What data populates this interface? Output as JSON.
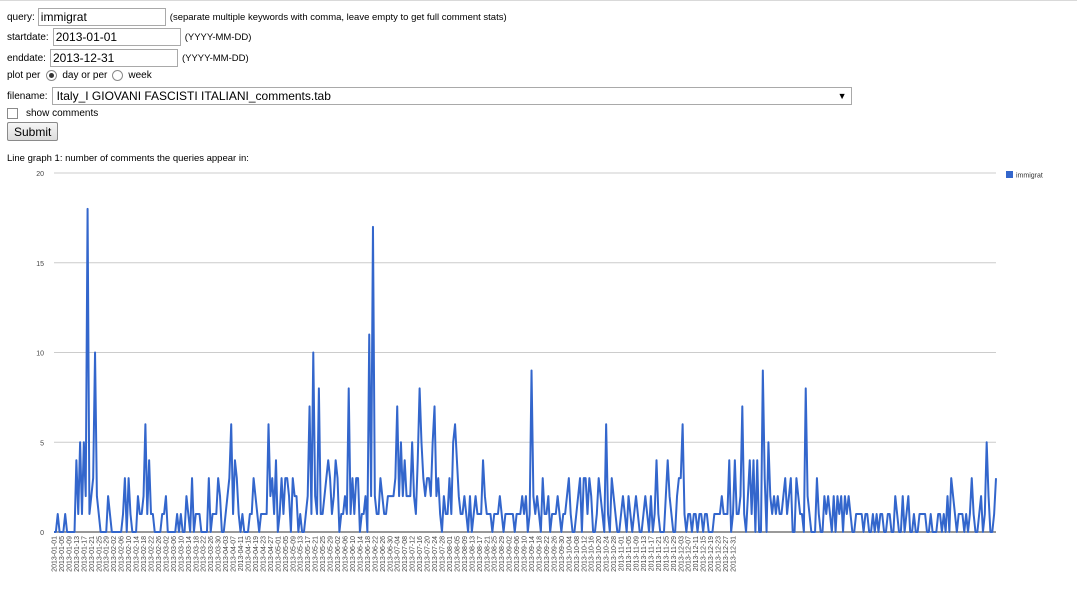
{
  "form": {
    "query_label": "query:",
    "query_value": "immigrat",
    "query_hint": "(separate multiple keywords with comma, leave empty to get full comment stats)",
    "startdate_label": "startdate:",
    "startdate_value": "2013-01-01",
    "startdate_hint": "(YYYY-MM-DD)",
    "enddate_label": "enddate:",
    "enddate_value": "2013-12-31",
    "enddate_hint": "(YYYY-MM-DD)",
    "plotper_label": "plot per",
    "plotper_option_day": "day or per",
    "plotper_option_week": "week",
    "filename_label": "filename:",
    "filename_value": "Italy_I GIOVANI FASCISTI ITALIANI_comments.tab",
    "show_comments_label": "show comments",
    "submit_label": "Submit"
  },
  "caption": "Line graph 1: number of comments the queries appear in:",
  "chart_data": {
    "type": "line",
    "title": "",
    "xlabel": "",
    "ylabel": "",
    "ylim": [
      0,
      20
    ],
    "yticks": [
      0,
      5,
      10,
      15,
      20
    ],
    "grid": true,
    "legend_position": "top-right",
    "x_start": "2013-01-01",
    "x_end": "2013-12-31",
    "x_tick_labels": [
      "2013-01-01",
      "2013-01-05",
      "2013-01-09",
      "2013-01-13",
      "2013-01-17",
      "2013-01-21",
      "2013-01-25",
      "2013-01-29",
      "2013-02-02",
      "2013-02-06",
      "2013-02-10",
      "2013-02-14",
      "2013-02-18",
      "2013-02-22",
      "2013-02-26",
      "2013-03-02",
      "2013-03-06",
      "2013-03-10",
      "2013-03-14",
      "2013-03-18",
      "2013-03-22",
      "2013-03-26",
      "2013-03-30",
      "2013-04-03",
      "2013-04-07",
      "2013-04-11",
      "2013-04-15",
      "2013-04-19",
      "2013-04-23",
      "2013-04-27",
      "2013-05-01",
      "2013-05-05",
      "2013-05-09",
      "2013-05-13",
      "2013-05-17",
      "2013-05-21",
      "2013-05-25",
      "2013-05-29",
      "2013-06-02",
      "2013-06-06",
      "2013-06-10",
      "2013-06-14",
      "2013-06-18",
      "2013-06-22",
      "2013-06-26",
      "2013-06-30",
      "2013-07-04",
      "2013-07-08",
      "2013-07-12",
      "2013-07-16",
      "2013-07-20",
      "2013-07-24",
      "2013-07-28",
      "2013-08-01",
      "2013-08-05",
      "2013-08-09",
      "2013-08-13",
      "2013-08-17",
      "2013-08-21",
      "2013-08-25",
      "2013-08-29",
      "2013-09-02",
      "2013-09-06",
      "2013-09-10",
      "2013-09-14",
      "2013-09-18",
      "2013-09-22",
      "2013-09-26",
      "2013-09-30",
      "2013-10-04",
      "2013-10-08",
      "2013-10-12",
      "2013-10-16",
      "2013-10-20",
      "2013-10-24",
      "2013-10-28",
      "2013-11-01",
      "2013-11-05",
      "2013-11-09",
      "2013-11-13",
      "2013-11-17",
      "2013-11-21",
      "2013-11-25",
      "2013-11-29",
      "2013-12-03",
      "2013-12-07",
      "2013-12-11",
      "2013-12-15",
      "2013-12-19",
      "2013-12-23",
      "2013-12-27",
      "2013-12-31"
    ],
    "series": [
      {
        "name": "immigrat",
        "color": "#3366cc",
        "values": [
          0,
          0,
          1,
          0,
          0,
          0,
          1,
          0,
          0,
          0,
          0,
          0,
          4,
          1,
          5,
          1,
          5,
          2,
          18,
          1,
          2,
          3,
          10,
          2,
          1,
          0,
          0,
          0,
          0,
          2,
          1,
          0,
          0,
          0,
          0,
          0,
          0,
          1,
          3,
          0,
          3,
          1,
          0,
          0,
          0,
          2,
          1,
          1,
          2,
          6,
          1,
          4,
          1,
          1,
          0,
          0,
          0,
          0,
          1,
          1,
          2,
          0,
          0,
          0,
          0,
          0,
          1,
          0,
          1,
          0,
          0,
          2,
          1,
          0,
          3,
          0,
          1,
          1,
          1,
          0,
          0,
          0,
          0,
          3,
          0,
          1,
          1,
          1,
          3,
          2,
          0,
          0,
          1,
          2,
          3,
          6,
          1,
          4,
          3,
          1,
          0,
          1,
          0,
          0,
          0,
          1,
          1,
          3,
          2,
          1,
          0,
          1,
          1,
          1,
          1,
          6,
          2,
          3,
          1,
          4,
          0,
          1,
          3,
          1,
          3,
          3,
          2,
          0,
          3,
          2,
          2,
          0,
          1,
          0,
          0,
          1,
          2,
          7,
          1,
          10,
          2,
          1,
          8,
          1,
          1,
          2,
          3,
          4,
          3,
          1,
          2,
          4,
          3,
          0,
          1,
          1,
          2,
          1,
          8,
          1,
          3,
          1,
          3,
          3,
          0,
          1,
          1,
          2,
          0,
          11,
          2,
          17,
          2,
          1,
          1,
          3,
          2,
          1,
          1,
          2,
          2,
          2,
          2,
          3,
          7,
          2,
          5,
          2,
          4,
          2,
          2,
          2,
          5,
          2,
          1,
          4,
          8,
          5,
          3,
          2,
          3,
          3,
          2,
          5,
          7,
          2,
          3,
          1,
          0,
          2,
          1,
          1,
          3,
          1,
          5,
          6,
          4,
          2,
          1,
          1,
          2,
          1,
          0,
          2,
          0,
          1,
          2,
          1,
          1,
          1,
          4,
          2,
          1,
          1,
          1,
          0,
          1,
          1,
          1,
          2,
          1,
          0,
          1,
          1,
          1,
          1,
          1,
          0,
          1,
          1,
          1,
          2,
          1,
          2,
          0,
          1,
          9,
          2,
          1,
          2,
          1,
          0,
          3,
          1,
          1,
          2,
          0,
          1,
          1,
          1,
          2,
          1,
          0,
          1,
          1,
          2,
          3,
          1,
          0,
          0,
          1,
          2,
          3,
          0,
          3,
          3,
          1,
          3,
          2,
          0,
          0,
          1,
          3,
          2,
          1,
          0,
          6,
          1,
          0,
          3,
          2,
          1,
          0,
          0,
          1,
          2,
          1,
          0,
          2,
          1,
          0,
          1,
          2,
          1,
          0,
          0,
          1,
          2,
          1,
          0,
          2,
          0,
          1,
          4,
          1,
          0,
          0,
          0,
          2,
          4,
          2,
          1,
          0,
          0,
          2,
          3,
          3,
          6,
          1,
          0,
          1,
          1,
          0,
          1,
          1,
          0,
          1,
          1,
          0,
          1,
          1,
          0,
          0,
          0,
          1,
          1,
          1,
          1,
          2,
          1,
          1,
          1,
          4,
          0,
          1,
          4,
          1,
          1,
          2,
          7,
          1,
          0,
          2,
          4,
          1,
          4,
          0,
          4,
          0,
          0,
          9,
          3,
          0,
          5,
          2,
          1,
          2,
          1,
          2,
          1,
          1,
          2,
          3,
          1,
          2,
          3,
          0,
          0,
          3,
          2,
          1,
          1,
          0,
          8,
          2,
          1,
          0,
          0,
          0,
          3,
          1,
          0,
          0,
          2,
          1,
          2,
          1,
          0,
          2,
          0,
          2,
          1,
          2,
          0,
          2,
          1,
          2,
          1,
          0,
          0,
          1,
          1,
          1,
          1,
          0,
          1,
          1,
          0,
          0,
          1,
          0,
          1,
          0,
          1,
          1,
          0,
          0,
          1,
          1,
          0,
          0,
          2,
          1,
          0,
          0,
          2,
          0,
          1,
          2,
          0,
          0,
          1,
          0,
          0,
          1,
          1,
          1,
          1,
          0,
          0,
          1,
          0,
          0,
          0,
          1,
          1,
          0,
          1,
          0,
          2,
          0,
          3,
          2,
          1,
          0,
          1,
          1,
          1,
          0,
          1,
          0,
          1,
          3,
          1,
          0,
          0,
          1,
          2,
          0,
          1,
          5,
          2,
          0,
          0,
          1,
          3
        ]
      }
    ]
  }
}
